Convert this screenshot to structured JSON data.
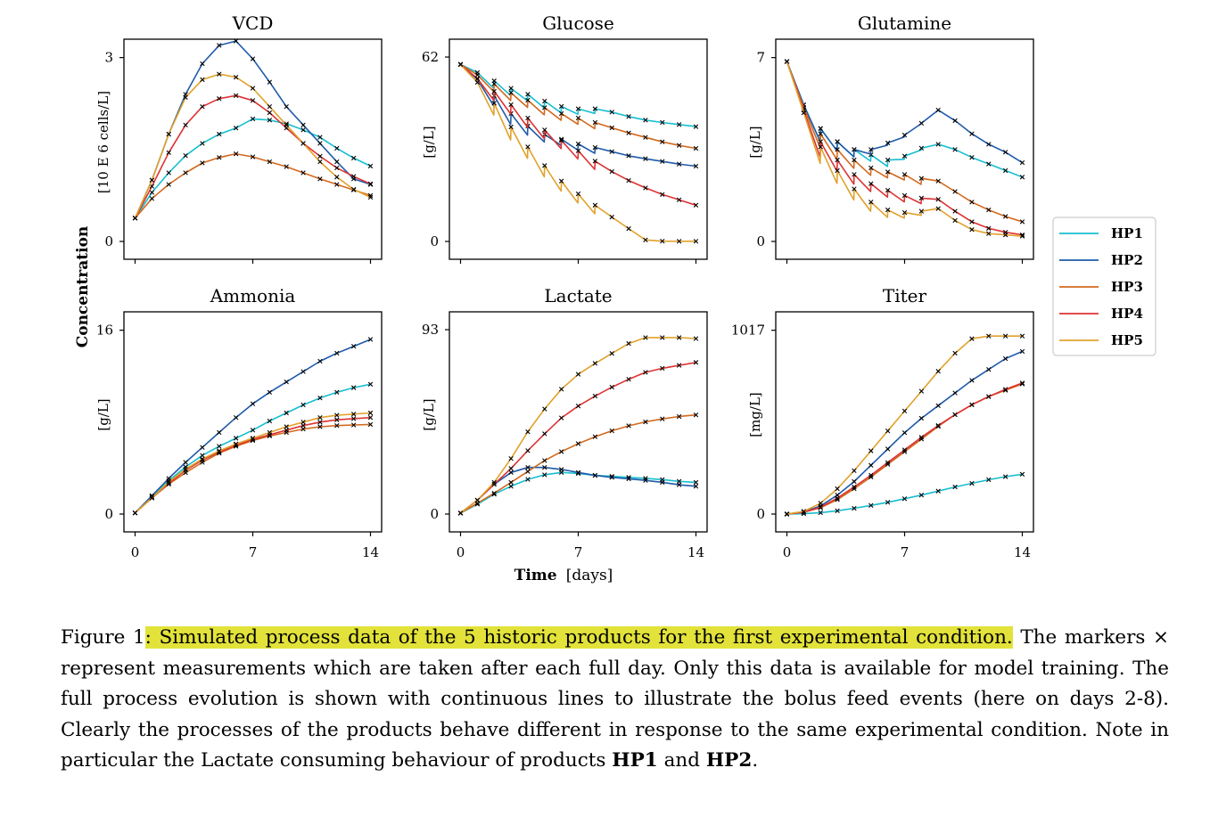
{
  "chart_data": {
    "type": "line",
    "super_ylabel": "Concentration",
    "super_xlabel_bold": "Time",
    "super_xlabel_unit": "[days]",
    "legend": {
      "placement": "right-center",
      "entries": [
        {
          "name": "HP1",
          "color": "#17becf"
        },
        {
          "name": "HP2",
          "color": "#1f5ba8"
        },
        {
          "name": "HP3",
          "color": "#d2691e"
        },
        {
          "name": "HP4",
          "color": "#dd3333"
        },
        {
          "name": "HP5",
          "color": "#e0a22c"
        }
      ]
    },
    "panels": [
      {
        "title": "VCD",
        "ylabel": "[10 E 6 cells/L]",
        "yticks": [
          "0",
          "3"
        ],
        "ylim": [
          0,
          3
        ],
        "ymax_draw": 3.3,
        "xticks": [
          "",
          "",
          ""
        ],
        "xlim": [
          0,
          14
        ],
        "bolus": false,
        "series": [
          {
            "name": "HP1",
            "y": [
              0.38,
              0.8,
              1.12,
              1.4,
              1.6,
              1.75,
              1.85,
              2.0,
              1.98,
              1.92,
              1.82,
              1.7,
              1.52,
              1.36,
              1.23
            ]
          },
          {
            "name": "HP2",
            "y": [
              0.38,
              1.0,
              1.75,
              2.4,
              2.9,
              3.2,
              3.27,
              2.98,
              2.6,
              2.2,
              1.9,
              1.6,
              1.3,
              1.02,
              0.93
            ]
          },
          {
            "name": "HP3",
            "y": [
              0.38,
              0.7,
              0.93,
              1.12,
              1.28,
              1.37,
              1.43,
              1.38,
              1.3,
              1.22,
              1.12,
              1.02,
              0.93,
              0.84,
              0.75
            ]
          },
          {
            "name": "HP4",
            "y": [
              0.38,
              0.9,
              1.45,
              1.9,
              2.2,
              2.33,
              2.38,
              2.3,
              2.1,
              1.85,
              1.6,
              1.39,
              1.2,
              1.06,
              0.94
            ]
          },
          {
            "name": "HP5",
            "y": [
              0.38,
              1.0,
              1.75,
              2.35,
              2.64,
              2.73,
              2.68,
              2.5,
              2.2,
              1.9,
              1.6,
              1.3,
              1.05,
              0.85,
              0.72
            ]
          }
        ]
      },
      {
        "title": "Glucose",
        "ylabel": "[g/L]",
        "yticks": [
          "0",
          "62"
        ],
        "ylim": [
          0,
          62
        ],
        "ymax_draw": 68,
        "xticks": [
          "",
          "",
          ""
        ],
        "xlim": [
          0,
          14
        ],
        "bolus": true,
        "series": [
          {
            "name": "HP1",
            "y": [
              59.5,
              56.8,
              54,
              51.5,
              49.5,
              47.2,
              45.4,
              44.6,
              44.6,
              43.5,
              42,
              40.8,
              40,
              39.3,
              38.6
            ]
          },
          {
            "name": "HP2",
            "y": [
              59.5,
              54.5,
              49,
              43,
              38.8,
              36,
              34.4,
              32.8,
              31.6,
              30.2,
              28.8,
              27.8,
              26.9,
              26,
              25.3
            ]
          },
          {
            "name": "HP3",
            "y": [
              59.5,
              56,
              53,
              50,
              47.5,
              45,
              43,
              41.5,
              40,
              38.2,
              36.5,
              35,
              33.5,
              32.3,
              31.3
            ]
          },
          {
            "name": "HP4",
            "y": [
              59.5,
              54.8,
              50.5,
              46,
              41.5,
              37.5,
              34,
              30.5,
              27,
              23.5,
              20.5,
              18,
              15.8,
              14,
              12.2
            ]
          },
          {
            "name": "HP5",
            "y": [
              59.5,
              53.5,
              46.5,
              38.5,
              31.8,
              25.5,
              20.3,
              16,
              12.2,
              8.2,
              4.3,
              0.5,
              0.1,
              0.05,
              0.05
            ]
          }
        ]
      },
      {
        "title": "Glutamine",
        "ylabel": "[g/L]",
        "yticks": [
          "0",
          "7"
        ],
        "ylim": [
          0,
          7
        ],
        "ymax_draw": 7.7,
        "xticks": [
          "",
          "",
          ""
        ],
        "xlim": [
          0,
          14
        ],
        "bolus": true,
        "series": [
          {
            "name": "HP1",
            "y": [
              6.85,
              5.2,
              4.3,
              3.8,
              3.5,
              3.3,
              3.1,
              3.25,
              3.55,
              3.7,
              3.5,
              3.2,
              2.95,
              2.7,
              2.45
            ]
          },
          {
            "name": "HP2",
            "y": [
              6.85,
              5.2,
              4.3,
              3.8,
              3.5,
              3.5,
              3.75,
              4.05,
              4.5,
              5.0,
              4.6,
              4.1,
              3.7,
              3.4,
              3.0
            ]
          },
          {
            "name": "HP3",
            "y": [
              6.85,
              5.1,
              4.1,
              3.5,
              3.1,
              2.8,
              2.65,
              2.55,
              2.4,
              2.3,
              1.9,
              1.5,
              1.2,
              0.95,
              0.75
            ]
          },
          {
            "name": "HP4",
            "y": [
              6.85,
              5.0,
              3.8,
              3.1,
              2.55,
              2.2,
              1.95,
              1.75,
              1.65,
              1.6,
              1.15,
              0.75,
              0.5,
              0.35,
              0.25
            ]
          },
          {
            "name": "HP5",
            "y": [
              6.85,
              4.9,
              3.6,
              2.7,
              2.0,
              1.5,
              1.2,
              1.1,
              1.15,
              1.25,
              0.8,
              0.45,
              0.3,
              0.25,
              0.2
            ]
          }
        ]
      },
      {
        "title": "Ammonia",
        "ylabel": "[g/L]",
        "yticks": [
          "0",
          "16"
        ],
        "ylim": [
          0,
          16
        ],
        "ymax_draw": 17.6,
        "xticks": [
          "0",
          "7",
          "14"
        ],
        "xlim": [
          0,
          14
        ],
        "bolus": false,
        "series": [
          {
            "name": "HP1",
            "y": [
              0.1,
              1.5,
              2.9,
              4.1,
              5.1,
              5.9,
              6.6,
              7.3,
              8.1,
              8.8,
              9.5,
              10.1,
              10.6,
              11.0,
              11.3
            ]
          },
          {
            "name": "HP2",
            "y": [
              0.1,
              1.6,
              3.1,
              4.5,
              5.8,
              7.1,
              8.4,
              9.6,
              10.6,
              11.5,
              12.4,
              13.3,
              14.0,
              14.6,
              15.2
            ]
          },
          {
            "name": "HP3",
            "y": [
              0.1,
              1.4,
              2.6,
              3.6,
              4.5,
              5.3,
              5.9,
              6.4,
              6.8,
              7.1,
              7.4,
              7.6,
              7.7,
              7.75,
              7.8
            ]
          },
          {
            "name": "HP4",
            "y": [
              0.1,
              1.4,
              2.7,
              3.8,
              4.7,
              5.4,
              6.0,
              6.5,
              6.9,
              7.3,
              7.7,
              8.0,
              8.2,
              8.3,
              8.4
            ]
          },
          {
            "name": "HP5",
            "y": [
              0.1,
              1.4,
              2.8,
              3.9,
              4.8,
              5.5,
              6.1,
              6.6,
              7.1,
              7.6,
              8.0,
              8.4,
              8.6,
              8.7,
              8.8
            ]
          }
        ]
      },
      {
        "title": "Lactate",
        "ylabel": "[g/L]",
        "yticks": [
          "0",
          "93"
        ],
        "ylim": [
          0,
          93
        ],
        "ymax_draw": 102,
        "xticks": [
          "0",
          "7",
          "14"
        ],
        "xlim": [
          0,
          14
        ],
        "bolus": false,
        "series": [
          {
            "name": "HP1",
            "y": [
              0.5,
              5,
              10,
              14,
              17.5,
              19.8,
              21,
              20.5,
              19.5,
              19,
              18.5,
              18,
              17.4,
              16.5,
              16
            ]
          },
          {
            "name": "HP2",
            "y": [
              0.5,
              7,
              15,
              21,
              23.5,
              23.5,
              22.5,
              21,
              19.5,
              18.5,
              17.8,
              17,
              16,
              14.8,
              14
            ]
          },
          {
            "name": "HP3",
            "y": [
              0.5,
              5.5,
              10.5,
              16,
              21.5,
              27,
              31.5,
              35.5,
              39,
              42,
              44.5,
              46.5,
              48,
              49.2,
              50
            ]
          },
          {
            "name": "HP4",
            "y": [
              0.5,
              7,
              15,
              23,
              32,
              40.5,
              48.5,
              54.5,
              59.5,
              64,
              68,
              71.5,
              73.5,
              75,
              76.5
            ]
          },
          {
            "name": "HP5",
            "y": [
              0.5,
              7,
              16,
              28,
              41.5,
              53,
              63,
              70.5,
              76,
              81,
              86,
              89,
              89,
              89,
              88.5
            ]
          }
        ]
      },
      {
        "title": "Titer",
        "ylabel": "[mg/L]",
        "yticks": [
          "0",
          "1017"
        ],
        "ylim": [
          0,
          1017
        ],
        "ymax_draw": 1119,
        "xticks": [
          "0",
          "7",
          "14"
        ],
        "xlim": [
          0,
          14
        ],
        "bolus": false,
        "series": [
          {
            "name": "HP1",
            "y": [
              0,
              2,
              8,
              18,
              32,
              48,
              65,
              85,
              105,
              127,
              150,
              170,
              190,
              207,
              220
            ]
          },
          {
            "name": "HP2",
            "y": [
              0,
              12,
              45,
              105,
              180,
              270,
              360,
              450,
              530,
              600,
              670,
              740,
              800,
              860,
              900
            ]
          },
          {
            "name": "HP3",
            "y": [
              0,
              10,
              35,
              80,
              140,
              205,
              275,
              345,
              415,
              485,
              550,
              605,
              650,
              685,
              720
            ]
          },
          {
            "name": "HP4",
            "y": [
              0,
              10,
              38,
              88,
              150,
              215,
              285,
              355,
              425,
              490,
              550,
              605,
              650,
              690,
              725
            ]
          },
          {
            "name": "HP5",
            "y": [
              0,
              15,
              60,
              140,
              240,
              350,
              460,
              570,
              680,
              790,
              890,
              970,
              985,
              985,
              985
            ]
          }
        ]
      }
    ]
  },
  "caption": {
    "prefix": "Figure 1",
    "highlight": ": Simulated process data of the 5 historic products for the first experimental condition.",
    "body": " The markers × represent measurements which are taken after each full day. Only this data is available for model training. The full process evolution is shown with continuous lines to illustrate the bolus feed events (here on days 2-8). Clearly the processes of the products behave different in response to the same experimental condition. Note in particular the Lactate consuming behaviour of products ",
    "b1": "HP1",
    "mid": " and ",
    "b2": "HP2",
    "end": "."
  }
}
